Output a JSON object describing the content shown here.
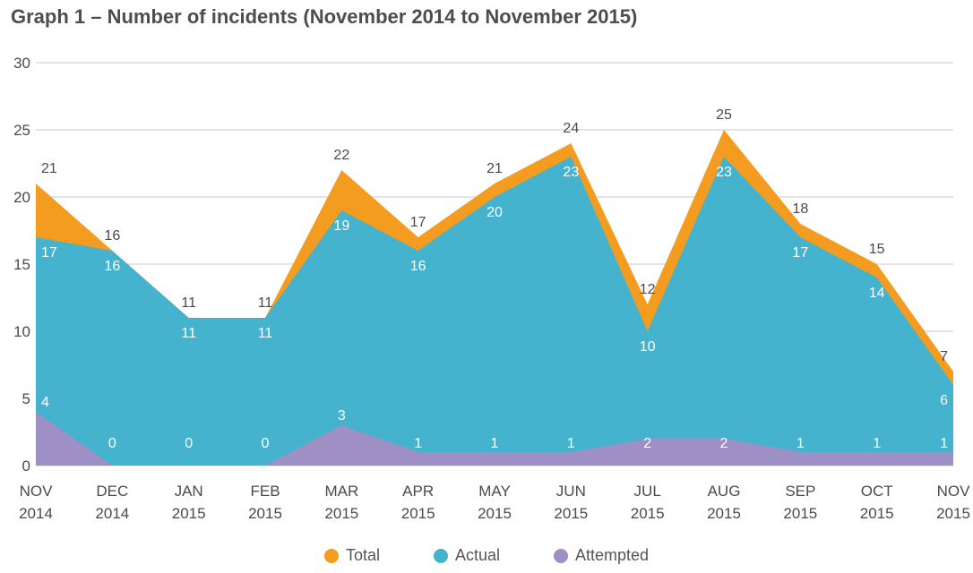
{
  "chart_data": {
    "type": "area",
    "title": "Graph 1 – Number of incidents (November 2014 to November 2015)",
    "categories": [
      [
        "NOV",
        "2014"
      ],
      [
        "DEC",
        "2014"
      ],
      [
        "JAN",
        "2015"
      ],
      [
        "FEB",
        "2015"
      ],
      [
        "MAR",
        "2015"
      ],
      [
        "APR",
        "2015"
      ],
      [
        "MAY",
        "2015"
      ],
      [
        "JUN",
        "2015"
      ],
      [
        "JUL",
        "2015"
      ],
      [
        "AUG",
        "2015"
      ],
      [
        "SEP",
        "2015"
      ],
      [
        "OCT",
        "2015"
      ],
      [
        "NOV",
        "2015"
      ]
    ],
    "series": [
      {
        "name": "Total",
        "color": "#f39c1f",
        "values": [
          21,
          16,
          11,
          11,
          22,
          17,
          21,
          24,
          12,
          25,
          18,
          15,
          7
        ]
      },
      {
        "name": "Actual",
        "color": "#45b3cd",
        "values": [
          17,
          16,
          11,
          11,
          19,
          16,
          20,
          23,
          10,
          23,
          17,
          14,
          6
        ]
      },
      {
        "name": "Attempted",
        "color": "#9e8fc4",
        "values": [
          4,
          0,
          0,
          0,
          3,
          1,
          1,
          1,
          2,
          2,
          1,
          1,
          1
        ]
      }
    ],
    "ylim": [
      0,
      30
    ],
    "yticks": [
      0,
      5,
      10,
      15,
      20,
      25,
      30
    ],
    "grid": true,
    "legend": "bottom-center"
  }
}
